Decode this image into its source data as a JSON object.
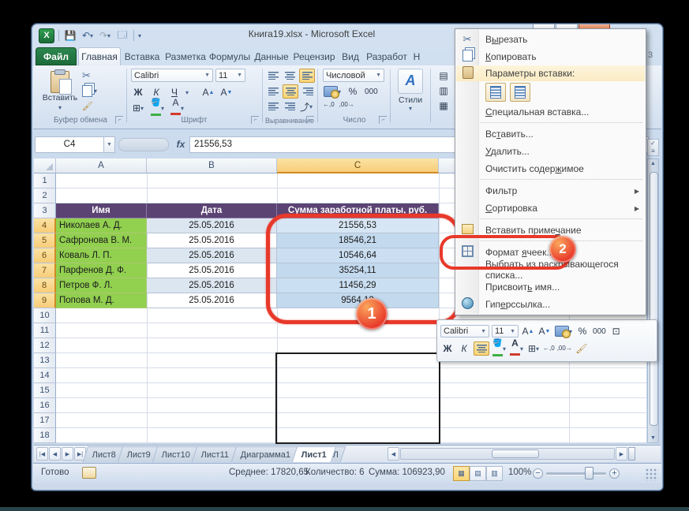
{
  "window": {
    "title": "Книга19.xlsx - Microsoft Excel",
    "edge_artifact": "3"
  },
  "ribbon_tabs": {
    "file": "Файл",
    "active": "Главная",
    "items": [
      "Главная",
      "Вставка",
      "Разметка",
      "Формулы",
      "Данные",
      "Рецензир",
      "Вид",
      "Разработ",
      "Н"
    ]
  },
  "ribbon": {
    "clipboard": {
      "paste": "Вставить",
      "group": "Буфер обмена"
    },
    "font": {
      "family": "Calibri",
      "size": "11",
      "bold": "Ж",
      "italic": "К",
      "underline": "Ч",
      "grow": "А",
      "shrink": "А",
      "color_letter": "А",
      "group": "Шрифт"
    },
    "alignment": {
      "group": "Выравнивание"
    },
    "number": {
      "format": "Числовой",
      "percent": "%",
      "thousands": "000",
      "inc_dec": "←,0",
      "dec_dec": ",00→",
      "group": "Число"
    },
    "styles": {
      "label": "Стили",
      "letter": "А"
    }
  },
  "formula_bar": {
    "name_box": "C4",
    "fx": "fx",
    "value": "21556,53"
  },
  "grid": {
    "columns": [
      "A",
      "B",
      "C"
    ],
    "selected_column": "C",
    "row_count": 18,
    "selected_rows": [
      4,
      5,
      6,
      7,
      8,
      9
    ]
  },
  "table": {
    "headers": [
      "Имя",
      "Дата",
      "Сумма заработной платы, руб."
    ],
    "rows": [
      {
        "name": "Николаев А. Д.",
        "date": "25.05.2016",
        "sum": "21556,53"
      },
      {
        "name": "Сафронова В. М.",
        "date": "25.05.2016",
        "sum": "18546,21"
      },
      {
        "name": "Коваль Л. П.",
        "date": "25.05.2016",
        "sum": "10546,64"
      },
      {
        "name": "Парфенов Д. Ф.",
        "date": "25.05.2016",
        "sum": "35254,11"
      },
      {
        "name": "Петров Ф. Л.",
        "date": "25.05.2016",
        "sum": "11456,29"
      },
      {
        "name": "Попова М. Д.",
        "date": "25.05.2016",
        "sum": "9564,12"
      }
    ]
  },
  "context_menu": {
    "paste_label": "Параметры вставки:",
    "items": [
      {
        "id": "cut",
        "pre": "В",
        "key": "ы",
        "post": "резать",
        "icon": "scissors"
      },
      {
        "id": "copy",
        "pre": "",
        "key": "К",
        "post": "опировать",
        "icon": "copy"
      },
      {
        "id": "paste-options",
        "type": "label",
        "pre": "Параметры вставки:",
        "key": "",
        "post": "",
        "icon": "clip"
      },
      {
        "id": "paste-icons",
        "type": "icons"
      },
      {
        "id": "paste-special",
        "pre": "",
        "key": "С",
        "post": "пециальная вставка...",
        "sep_after": true
      },
      {
        "id": "insert-cells",
        "pre": "Вс",
        "key": "т",
        "post": "авить..."
      },
      {
        "id": "delete-cells",
        "pre": "",
        "key": "У",
        "post": "далить..."
      },
      {
        "id": "clear-contents",
        "pre": "Очистить содер",
        "key": "ж",
        "post": "имое",
        "sep_after": true
      },
      {
        "id": "filter",
        "pre": "Фильтр",
        "key": "",
        "post": "",
        "arrow": true
      },
      {
        "id": "sort",
        "pre": "",
        "key": "С",
        "post": "ортировка",
        "arrow": true,
        "sep_after": true
      },
      {
        "id": "insert-comment",
        "pre": "Вставить приме",
        "key": "ч",
        "post": "ание",
        "icon": "note",
        "sep_after": true
      },
      {
        "id": "format-cells",
        "pre": "Формат ",
        "key": "я",
        "post": "чеек...",
        "icon": "fmt"
      },
      {
        "id": "pick-from-list",
        "pre": "Вы",
        "key": "б",
        "post": "рать из раскрывающегося списка..."
      },
      {
        "id": "define-name",
        "pre": "Присвоит",
        "key": "ь",
        "post": " имя..."
      },
      {
        "id": "hyperlink",
        "pre": "Гип",
        "key": "е",
        "post": "рссылка...",
        "icon": "globe"
      }
    ]
  },
  "mini_toolbar": {
    "font": "Calibri",
    "size": "11",
    "grow": "А",
    "shrink": "А",
    "percent": "%",
    "thousands": "000",
    "bold": "Ж",
    "italic": "К",
    "color_letter": "А",
    "inc_dec": "←,0",
    "dec_dec": ",00→"
  },
  "sheet_tabs": {
    "tabs": [
      {
        "label": "Лист8"
      },
      {
        "label": "Лист9"
      },
      {
        "label": "Лист10"
      },
      {
        "label": "Лист11"
      },
      {
        "label": "Диаграмма1"
      },
      {
        "label": "Лист1",
        "active": true
      },
      {
        "label": "Л",
        "partial": true
      }
    ]
  },
  "status_bar": {
    "ready": "Готово",
    "average": "Среднее: 17820,65",
    "count": "Количество: 6",
    "sum": "Сумма: 106923,90",
    "zoom": "100%"
  },
  "annotations": {
    "step1": "1",
    "step2": "2"
  },
  "colors": {
    "header_purple": "#5B4374",
    "name_green": "#92D050",
    "band_blue": "#DCE6F1",
    "selection_blue": "#C3D9EE",
    "selected_header_amber": "#F7CD79",
    "annotation_red": "#E8392A",
    "file_tab_green": "#1C6B3A"
  }
}
